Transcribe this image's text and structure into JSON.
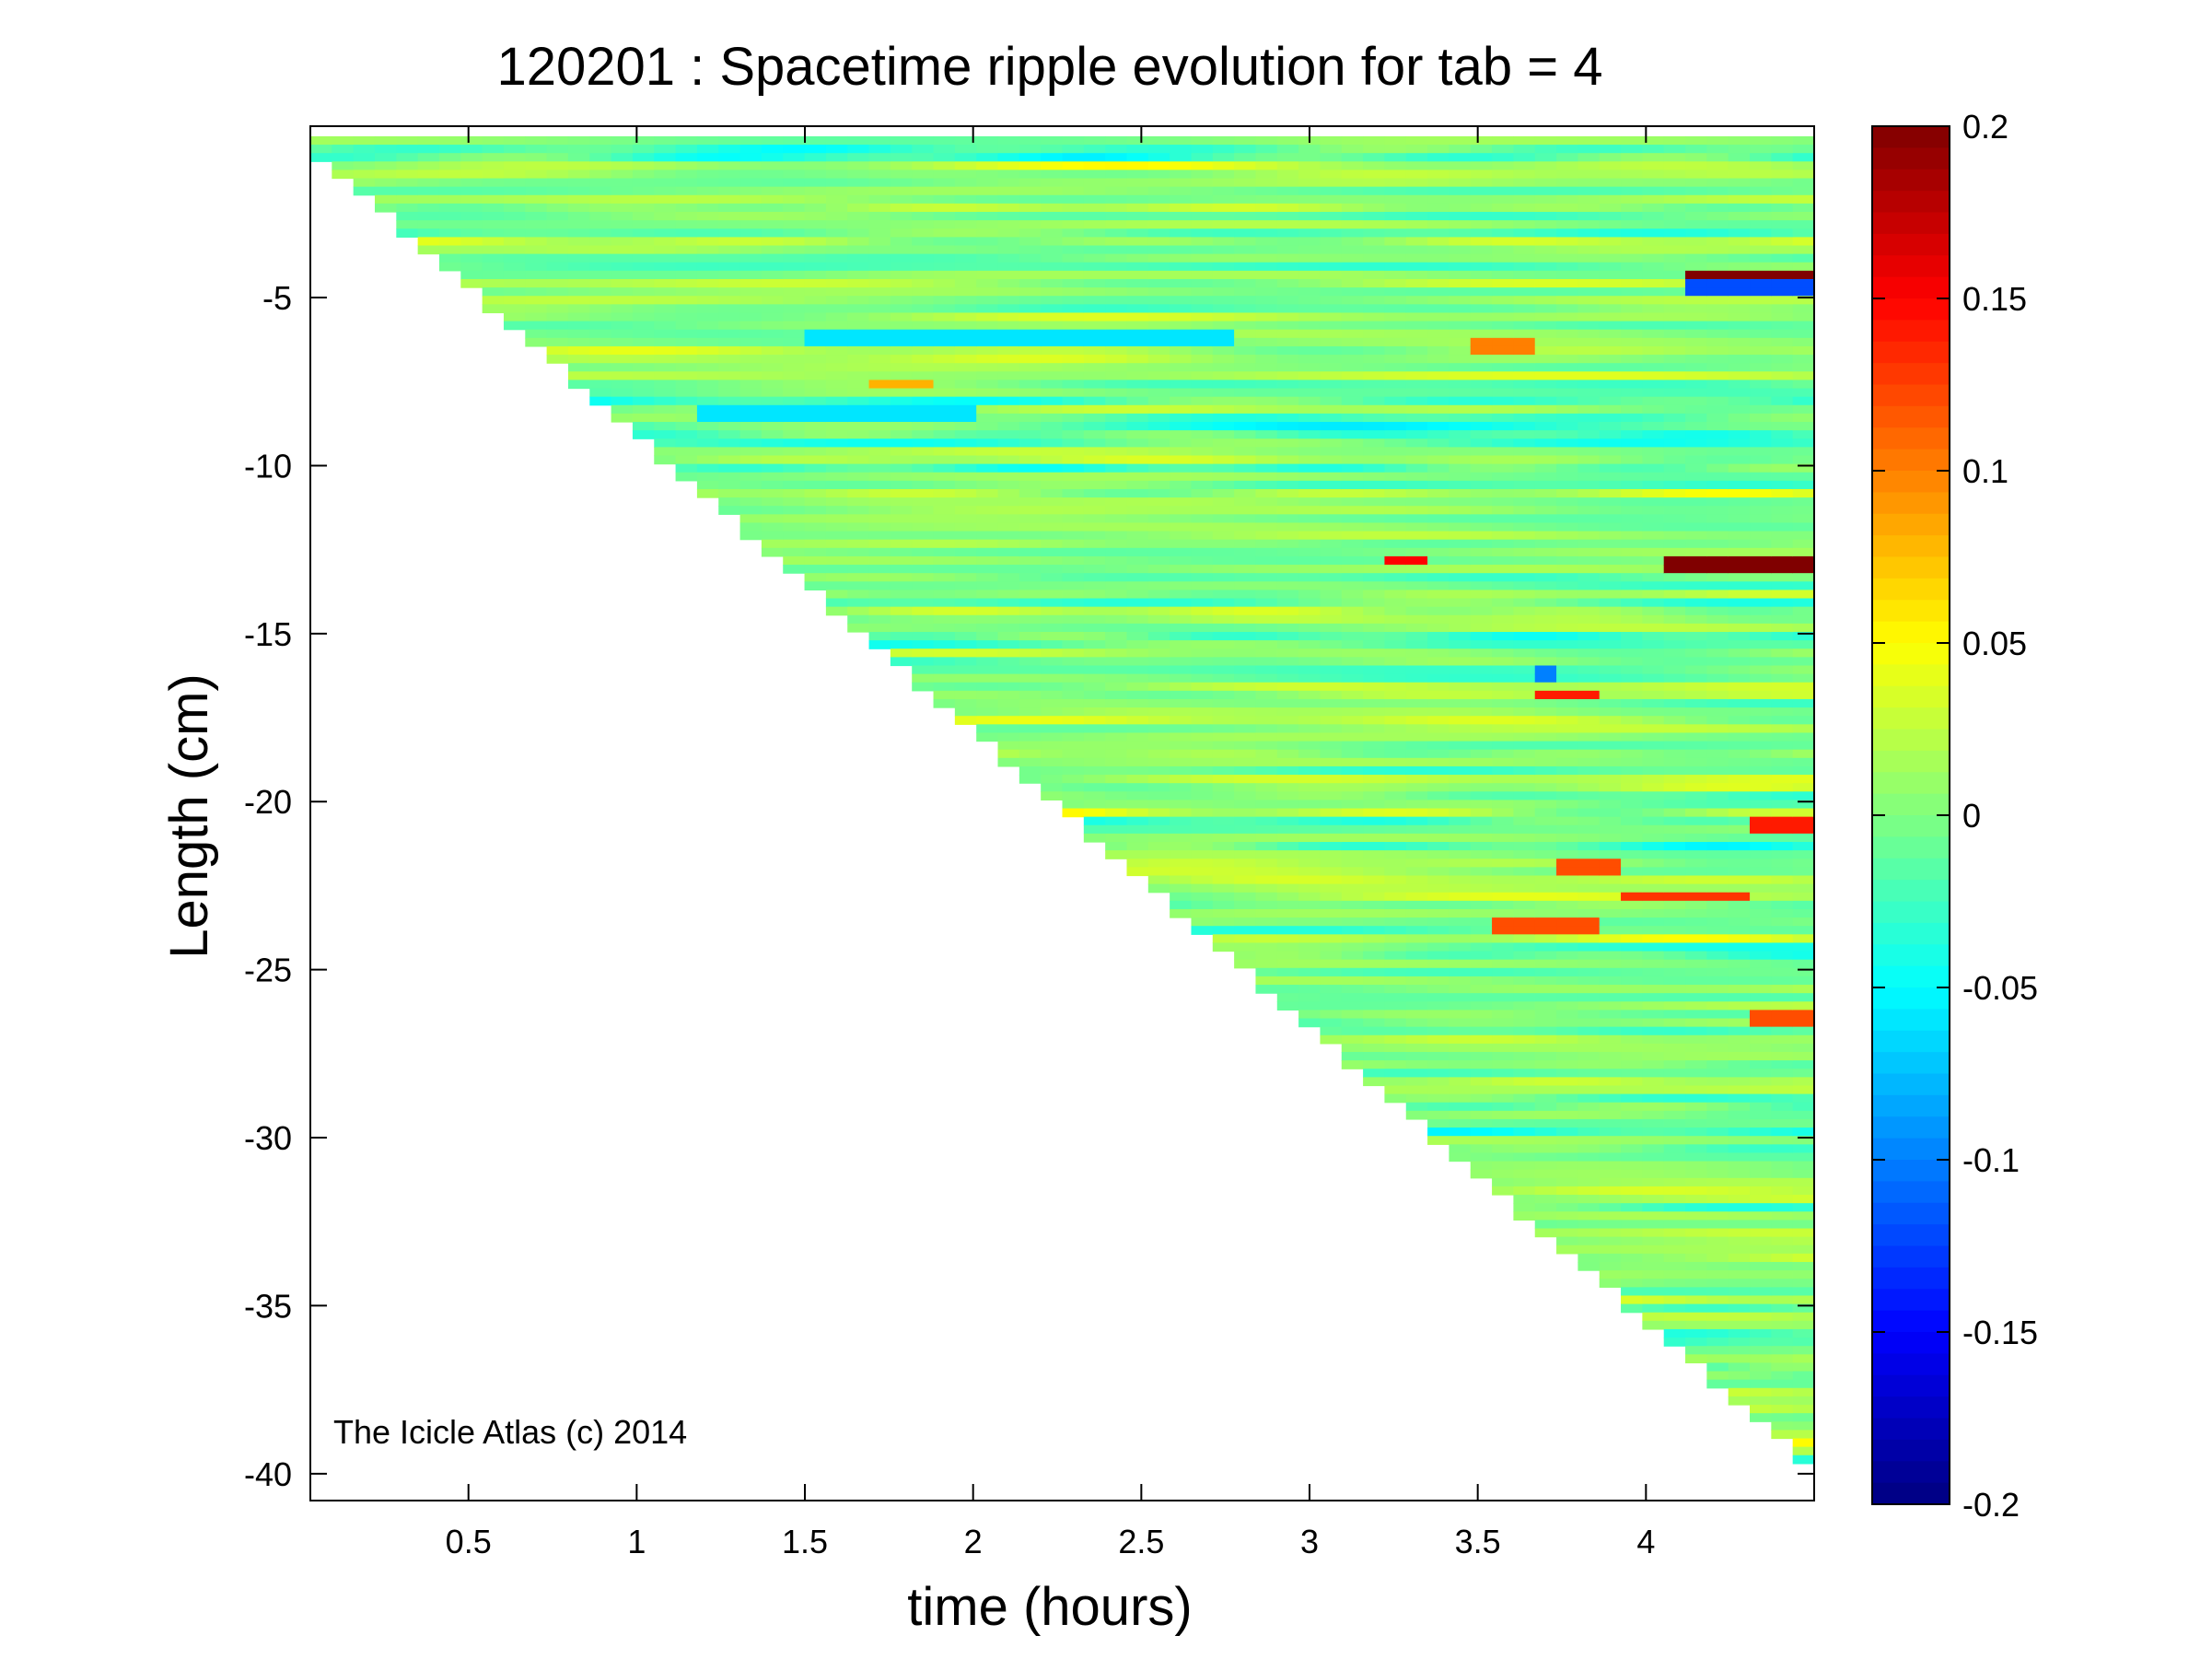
{
  "chart_data": {
    "type": "heatmap",
    "title": "120201 : Spacetime ripple evolution for tab = 4",
    "xlabel": "time (hours)",
    "ylabel": "Length (cm)",
    "xlim": [
      0.03,
      4.5
    ],
    "ylim": [
      -40.8,
      0.1
    ],
    "xticks": [
      0.5,
      1,
      1.5,
      2,
      2.5,
      3,
      3.5,
      4
    ],
    "yticks": [
      -5,
      -10,
      -15,
      -20,
      -25,
      -30,
      -35,
      -40
    ],
    "xtick_labels": [
      "0.5",
      "1",
      "1.5",
      "2",
      "2.5",
      "3",
      "3.5",
      "4"
    ],
    "ytick_labels": [
      "-5",
      "-10",
      "-15",
      "-20",
      "-25",
      "-30",
      "-35",
      "-40"
    ],
    "colorbar": {
      "range": [
        -0.2,
        0.2
      ],
      "ticks": [
        0.2,
        0.15,
        0.1,
        0.05,
        0,
        -0.05,
        -0.1,
        -0.15,
        -0.2
      ],
      "tick_labels": [
        "0.2",
        "0.15",
        "0.1",
        "0.05",
        "0",
        "-0.05",
        "-0.1",
        "-0.15",
        "-0.2"
      ],
      "colormap": "jet"
    },
    "data_extent": {
      "start": {
        "time": 0.03,
        "length": -0.2
      },
      "end": {
        "time": 4.5,
        "length": -39.5
      },
      "fill_value_typical": 0.0,
      "amplitude_typical": 0.04
    },
    "features": [
      {
        "time": [
          4.1,
          4.5
        ],
        "length": -4.5,
        "value": 0.2
      },
      {
        "time": [
          4.1,
          4.5
        ],
        "length": -4.8,
        "value": -0.12
      },
      {
        "time": [
          4.03,
          4.5
        ],
        "length": -13.0,
        "value": 0.2
      },
      {
        "time": [
          3.25,
          3.35
        ],
        "length": -12.8,
        "value": 0.15
      },
      {
        "time": [
          3.65,
          3.85
        ],
        "length": -16.8,
        "value": 0.14
      },
      {
        "time": [
          3.65,
          3.75
        ],
        "length": -16.2,
        "value": -0.1
      },
      {
        "time": [
          3.75,
          3.95
        ],
        "length": -22.0,
        "value": 0.12
      },
      {
        "time": [
          3.95,
          4.3
        ],
        "length": -22.8,
        "value": 0.13
      },
      {
        "time": [
          3.55,
          3.85
        ],
        "length": -23.6,
        "value": 0.12
      },
      {
        "time": [
          4.3,
          4.5
        ],
        "length": -20.7,
        "value": 0.14
      },
      {
        "time": [
          4.3,
          4.5
        ],
        "length": -26.4,
        "value": 0.12
      },
      {
        "time": [
          1.5,
          2.8
        ],
        "length": -6.3,
        "value": -0.06
      },
      {
        "time": [
          1.2,
          2.0
        ],
        "length": -8.5,
        "value": -0.06
      },
      {
        "time": [
          3.5,
          3.7
        ],
        "length": -6.4,
        "value": 0.1
      },
      {
        "time": [
          1.7,
          1.9
        ],
        "length": -7.6,
        "value": 0.08
      }
    ],
    "grid": false
  },
  "annotation": "The Icicle Atlas (c) 2014"
}
